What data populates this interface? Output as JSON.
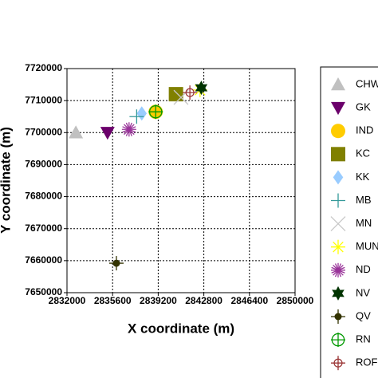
{
  "chart_data": {
    "type": "scatter",
    "xlabel": "X coordinate (m)",
    "ylabel": "Y coordinate (m)",
    "xlim": [
      2832000,
      2850000
    ],
    "xticks": [
      2832000,
      2835600,
      2839200,
      2842800,
      2846400,
      2850000
    ],
    "ylim": [
      7650000,
      7720000
    ],
    "yticks": [
      7650000,
      7660000,
      7670000,
      7680000,
      7690000,
      7700000,
      7710000,
      7720000
    ],
    "grid": true,
    "legend": "right",
    "series": [
      {
        "name": "CHW",
        "color": "#c0c0c0",
        "marker": "triangle",
        "x": [
          2832700
        ],
        "values": [
          7700000
        ]
      },
      {
        "name": "GK",
        "color": "#6b006b",
        "marker": "triangle-down",
        "x": [
          2835200
        ],
        "values": [
          7700000
        ]
      },
      {
        "name": "IND",
        "color": "#ffcc00",
        "marker": "circle",
        "x": [
          2839000
        ],
        "values": [
          7706500
        ]
      },
      {
        "name": "KC",
        "color": "#808000",
        "marker": "square",
        "x": [
          2840600
        ],
        "values": [
          7712000
        ]
      },
      {
        "name": "KK",
        "color": "#99ccff",
        "marker": "diamond",
        "x": [
          2837900
        ],
        "values": [
          7706000
        ]
      },
      {
        "name": "MB",
        "color": "#339999",
        "marker": "plus",
        "x": [
          2837500
        ],
        "values": [
          7705000
        ]
      },
      {
        "name": "MN",
        "color": "#c8c8c8",
        "marker": "cross",
        "x": [
          2841000
        ],
        "values": [
          7711000
        ]
      },
      {
        "name": "MUN",
        "color": "#ffff00",
        "marker": "asterisk",
        "x": [
          2842500
        ],
        "values": [
          7713300
        ]
      },
      {
        "name": "ND",
        "color": "#993399",
        "marker": "asterisk8",
        "x": [
          2836900
        ],
        "values": [
          7701000
        ]
      },
      {
        "name": "NV",
        "color": "#003300",
        "marker": "star6",
        "x": [
          2842600
        ],
        "values": [
          7714000
        ]
      },
      {
        "name": "QV",
        "color": "#333300",
        "marker": "dot-plus",
        "x": [
          2835900
        ],
        "values": [
          7659200
        ]
      },
      {
        "name": "RN",
        "color": "#009900",
        "marker": "circle-plus",
        "x": [
          2839000
        ],
        "values": [
          7706500
        ]
      },
      {
        "name": "ROF",
        "color": "#993333",
        "marker": "circle-plus-small",
        "x": [
          2841700
        ],
        "values": [
          7712500
        ]
      }
    ]
  }
}
